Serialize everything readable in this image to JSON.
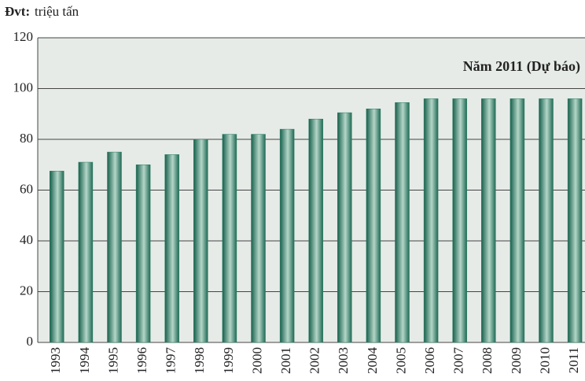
{
  "chart_data": {
    "type": "bar",
    "unit_label": "Đvt:",
    "unit": "triệu tấn",
    "annotation": "Năm 2011 (Dự báo)",
    "categories": [
      "1993",
      "1994",
      "1995",
      "1996",
      "1997",
      "1998",
      "1999",
      "2000",
      "2001",
      "2002",
      "2003",
      "2004",
      "2005",
      "2006",
      "2007",
      "2008",
      "2009",
      "2010",
      "2011"
    ],
    "values": [
      67.5,
      71,
      75,
      70,
      74,
      80,
      82,
      82,
      84,
      88,
      90.5,
      92,
      94.5,
      96,
      96,
      96,
      96,
      96,
      96
    ],
    "color": "#2e7d64",
    "ylim": [
      0,
      120
    ],
    "yticks": [
      0,
      20,
      40,
      60,
      80,
      100,
      120
    ],
    "grid": true
  }
}
